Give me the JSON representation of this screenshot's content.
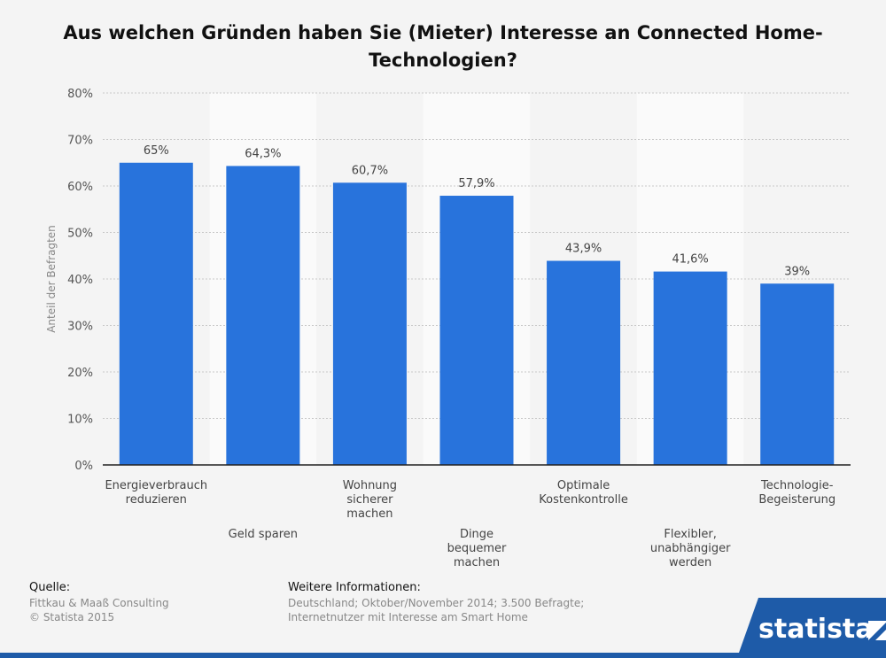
{
  "title_lines": [
    "Aus welchen Gründen haben Sie (Mieter) Interesse an Connected Home-",
    "Technologien?"
  ],
  "chart_data": {
    "type": "bar",
    "title": "Aus welchen Gründen haben Sie (Mieter) Interesse an Connected Home-Technologien?",
    "ylabel": "Anteil der Befragten",
    "xlabel": "",
    "ylim": [
      0,
      80
    ],
    "yticks": [
      0,
      10,
      20,
      30,
      40,
      50,
      60,
      70,
      80
    ],
    "ytick_labels": [
      "0%",
      "10%",
      "20%",
      "30%",
      "40%",
      "50%",
      "60%",
      "70%",
      "80%"
    ],
    "grid": true,
    "bar_color": "#2873dc",
    "categories": [
      [
        "Energieverbrauch",
        "reduzieren"
      ],
      [
        "Geld sparen"
      ],
      [
        "Wohnung",
        "sicherer",
        "machen"
      ],
      [
        "Dinge",
        "bequemer",
        "machen"
      ],
      [
        "Optimale",
        "Kostenkontrolle"
      ],
      [
        "Flexibler,",
        "unabhängiger",
        "werden"
      ],
      [
        "Technologie-",
        "Begeisterung"
      ]
    ],
    "values": [
      65,
      64.3,
      60.7,
      57.9,
      43.9,
      41.6,
      39
    ],
    "value_labels": [
      "65%",
      "64,3%",
      "60,7%",
      "57,9%",
      "43,9%",
      "41,6%",
      "39%"
    ]
  },
  "footer": {
    "source_heading": "Quelle:",
    "source_lines": [
      "Fittkau & Maaß Consulting",
      "© Statista 2015"
    ],
    "info_heading": "Weitere Informationen:",
    "info_lines": [
      "Deutschland; Oktober/November 2014; 3.500 Befragte;",
      "Internetnutzer mit Interesse am Smart Home"
    ]
  },
  "logo_text": "statista",
  "colors": {
    "accent": "#2873dc",
    "logo_bg": "#1e5ba8"
  }
}
